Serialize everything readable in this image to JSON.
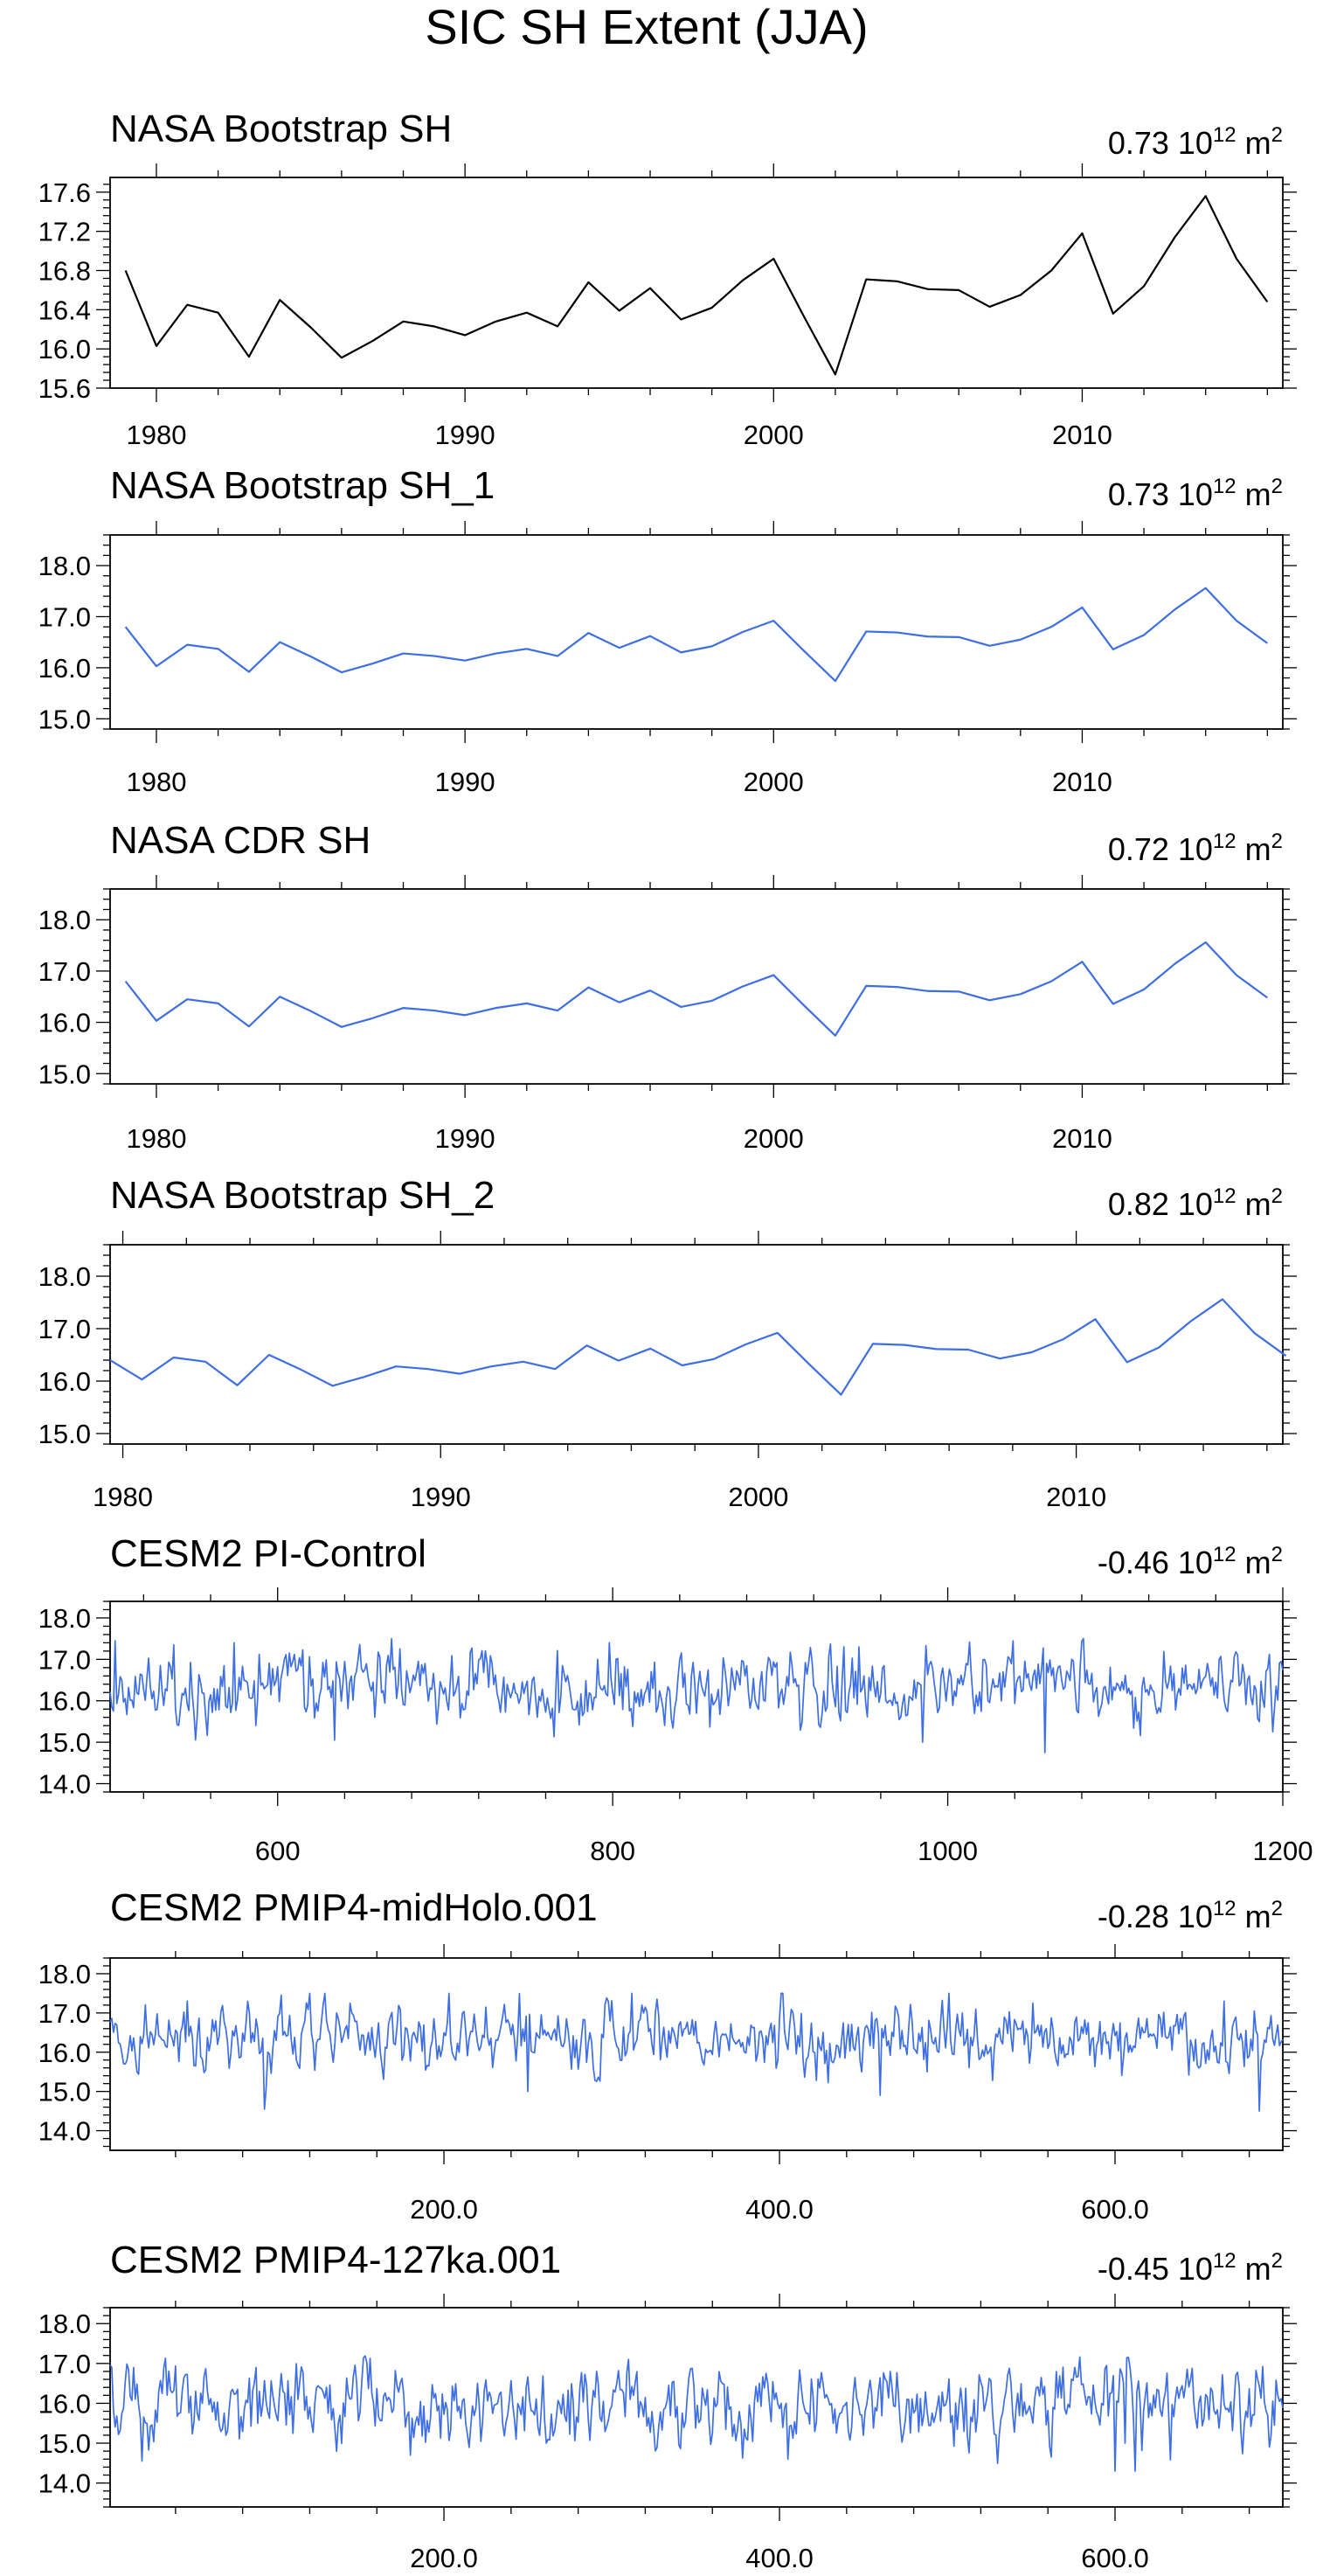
{
  "figure": {
    "title": "SIC SH Extent (JJA)",
    "unit_label": "10",
    "unit_exp": "12",
    "unit_suffix": "m"
  },
  "colors": {
    "black": "#000000",
    "blue": "#3d6ee3",
    "frame": "#000000"
  },
  "chart_data": [
    {
      "type": "line",
      "title": "NASA Bootstrap SH",
      "stat": "0.73",
      "color": "#000000",
      "x_range": [
        1978.5,
        2016.5
      ],
      "ylim": [
        15.6,
        17.75
      ],
      "y_ticks": [
        15.6,
        16.0,
        16.4,
        16.8,
        17.2,
        17.6
      ],
      "y_tick_labels": [
        "15.6",
        "16.0",
        "16.4",
        "16.8",
        "17.2",
        "17.6"
      ],
      "x_ticks": [
        1980,
        1990,
        2000,
        2010
      ],
      "x_tick_labels": [
        "1980",
        "1990",
        "2000",
        "2010"
      ],
      "series": {
        "kind": "values",
        "x_start": 1979,
        "x_step": 1,
        "values": [
          16.8,
          16.03,
          16.45,
          16.37,
          15.92,
          16.5,
          16.22,
          15.91,
          16.08,
          16.28,
          16.23,
          16.14,
          16.28,
          16.37,
          16.23,
          16.68,
          16.39,
          16.62,
          16.3,
          16.42,
          16.7,
          16.92,
          16.32,
          15.74,
          16.71,
          16.69,
          16.61,
          16.6,
          16.43,
          16.55,
          16.8,
          17.18,
          16.36,
          16.64,
          17.14,
          17.56,
          16.92,
          16.48
        ]
      }
    },
    {
      "type": "line",
      "title": "NASA Bootstrap SH_1",
      "stat": "0.73",
      "color": "#3d6ee3",
      "x_range": [
        1978.5,
        2016.5
      ],
      "ylim": [
        14.8,
        18.6
      ],
      "y_ticks": [
        15.0,
        16.0,
        17.0,
        18.0
      ],
      "y_tick_labels": [
        "15.0",
        "16.0",
        "17.0",
        "18.0"
      ],
      "x_ticks": [
        1980,
        1990,
        2000,
        2010
      ],
      "x_tick_labels": [
        "1980",
        "1990",
        "2000",
        "2010"
      ],
      "series": {
        "kind": "values",
        "x_start": 1979,
        "x_step": 1,
        "values": [
          16.8,
          16.03,
          16.45,
          16.37,
          15.92,
          16.5,
          16.22,
          15.91,
          16.08,
          16.28,
          16.23,
          16.14,
          16.28,
          16.37,
          16.23,
          16.68,
          16.39,
          16.62,
          16.3,
          16.42,
          16.7,
          16.92,
          16.32,
          15.74,
          16.71,
          16.69,
          16.61,
          16.6,
          16.43,
          16.55,
          16.8,
          17.18,
          16.36,
          16.64,
          17.14,
          17.56,
          16.92,
          16.48
        ]
      }
    },
    {
      "type": "line",
      "title": "NASA CDR SH",
      "stat": "0.72",
      "color": "#3d6ee3",
      "x_range": [
        1978.5,
        2016.5
      ],
      "ylim": [
        14.8,
        18.6
      ],
      "y_ticks": [
        15.0,
        16.0,
        17.0,
        18.0
      ],
      "y_tick_labels": [
        "15.0",
        "16.0",
        "17.0",
        "18.0"
      ],
      "x_ticks": [
        1980,
        1990,
        2000,
        2010
      ],
      "x_tick_labels": [
        "1980",
        "1990",
        "2000",
        "2010"
      ],
      "series": {
        "kind": "values",
        "x_start": 1979,
        "x_step": 1,
        "values": [
          16.8,
          16.03,
          16.45,
          16.37,
          15.92,
          16.5,
          16.22,
          15.91,
          16.08,
          16.28,
          16.23,
          16.14,
          16.28,
          16.37,
          16.23,
          16.68,
          16.39,
          16.62,
          16.3,
          16.42,
          16.7,
          16.92,
          16.32,
          15.74,
          16.71,
          16.69,
          16.61,
          16.6,
          16.43,
          16.55,
          16.8,
          17.18,
          16.36,
          16.64,
          17.14,
          17.56,
          16.92,
          16.48
        ]
      }
    },
    {
      "type": "line",
      "title": "NASA Bootstrap SH_2",
      "stat": "0.82",
      "color": "#3d6ee3",
      "x_range": [
        1979.6,
        2016.5
      ],
      "ylim": [
        14.8,
        18.6
      ],
      "y_ticks": [
        15.0,
        16.0,
        17.0,
        18.0
      ],
      "y_tick_labels": [
        "15.0",
        "16.0",
        "17.0",
        "18.0"
      ],
      "x_ticks": [
        1980,
        1990,
        2000,
        2010
      ],
      "x_tick_labels": [
        "1980",
        "1990",
        "2000",
        "2010"
      ],
      "series": {
        "kind": "values",
        "x_start": 1979.6,
        "x_step": 1,
        "values": [
          16.4,
          16.03,
          16.45,
          16.37,
          15.92,
          16.5,
          16.22,
          15.91,
          16.08,
          16.28,
          16.23,
          16.14,
          16.28,
          16.37,
          16.23,
          16.68,
          16.39,
          16.62,
          16.3,
          16.42,
          16.7,
          16.92,
          16.32,
          15.74,
          16.71,
          16.69,
          16.61,
          16.6,
          16.43,
          16.55,
          16.8,
          17.18,
          16.36,
          16.64,
          17.14,
          17.56,
          16.92,
          16.48
        ]
      }
    },
    {
      "type": "line",
      "title": "CESM2 PI-Control",
      "stat": "-0.46",
      "color": "#3d6ee3",
      "x_range": [
        500,
        1200
      ],
      "ylim": [
        13.8,
        18.4
      ],
      "y_ticks": [
        14.0,
        15.0,
        16.0,
        17.0,
        18.0
      ],
      "y_tick_labels": [
        "14.0",
        "15.0",
        "16.0",
        "17.0",
        "18.0"
      ],
      "x_ticks": [
        600,
        800,
        1000,
        1200
      ],
      "x_tick_labels": [
        "600",
        "800",
        "1000",
        "1200"
      ],
      "series": {
        "kind": "noise",
        "seed": 17,
        "x_start": 500,
        "x_end": 1200,
        "mean": 16.3,
        "sd": 0.42,
        "min": 14.75,
        "max": 17.5,
        "features": [
          [
            503,
            17.45
          ],
          [
            538,
            17.35
          ],
          [
            574,
            17.4
          ],
          [
            634,
            15.05
          ],
          [
            798,
            17.4
          ],
          [
            947,
            17.3
          ],
          [
            985,
            15.0
          ],
          [
            1058,
            14.75
          ],
          [
            1199,
            16.95
          ]
        ]
      }
    },
    {
      "type": "line",
      "title": "CESM2 PMIP4-midHolo.001",
      "stat": "-0.28",
      "color": "#3d6ee3",
      "x_range": [
        1,
        700
      ],
      "ylim": [
        13.5,
        18.4
      ],
      "y_ticks": [
        14.0,
        15.0,
        16.0,
        17.0,
        18.0
      ],
      "y_tick_labels": [
        "14.0",
        "15.0",
        "16.0",
        "17.0",
        "18.0"
      ],
      "x_ticks": [
        200,
        400,
        600
      ],
      "x_tick_labels": [
        "200.0",
        "400.0",
        "600.0"
      ],
      "series": {
        "kind": "noise",
        "seed": 41,
        "x_start": 1,
        "x_end": 700,
        "mean": 16.35,
        "sd": 0.42,
        "min": 14.55,
        "max": 17.5,
        "features": [
          [
            93,
            14.55
          ],
          [
            103,
            17.45
          ],
          [
            250,
            15.0
          ],
          [
            318,
            17.2
          ],
          [
            460,
            14.9
          ],
          [
            501,
            17.5
          ],
          [
            551,
            17.25
          ],
          [
            665,
            17.3
          ],
          [
            686,
            14.5
          ]
        ]
      }
    },
    {
      "type": "line",
      "title": "CESM2 PMIP4-127ka.001",
      "stat": "-0.45",
      "color": "#3d6ee3",
      "x_range": [
        1,
        700
      ],
      "ylim": [
        13.4,
        18.4
      ],
      "y_ticks": [
        14.0,
        15.0,
        16.0,
        17.0,
        18.0
      ],
      "y_tick_labels": [
        "14.0",
        "15.0",
        "16.0",
        "17.0",
        "18.0"
      ],
      "x_ticks": [
        200,
        400,
        600
      ],
      "x_tick_labels": [
        "200.0",
        "400.0",
        "600.0"
      ],
      "series": {
        "kind": "noise",
        "seed": 73,
        "x_start": 1,
        "x_end": 700,
        "mean": 15.95,
        "sd": 0.45,
        "min": 14.3,
        "max": 17.2,
        "features": [
          [
            2,
            16.9
          ],
          [
            20,
            14.55
          ],
          [
            180,
            14.7
          ],
          [
            310,
            17.1
          ],
          [
            405,
            14.6
          ],
          [
            600,
            14.3
          ],
          [
            606,
            15.0
          ],
          [
            612,
            14.3
          ],
          [
            692,
            14.9
          ]
        ]
      }
    }
  ]
}
